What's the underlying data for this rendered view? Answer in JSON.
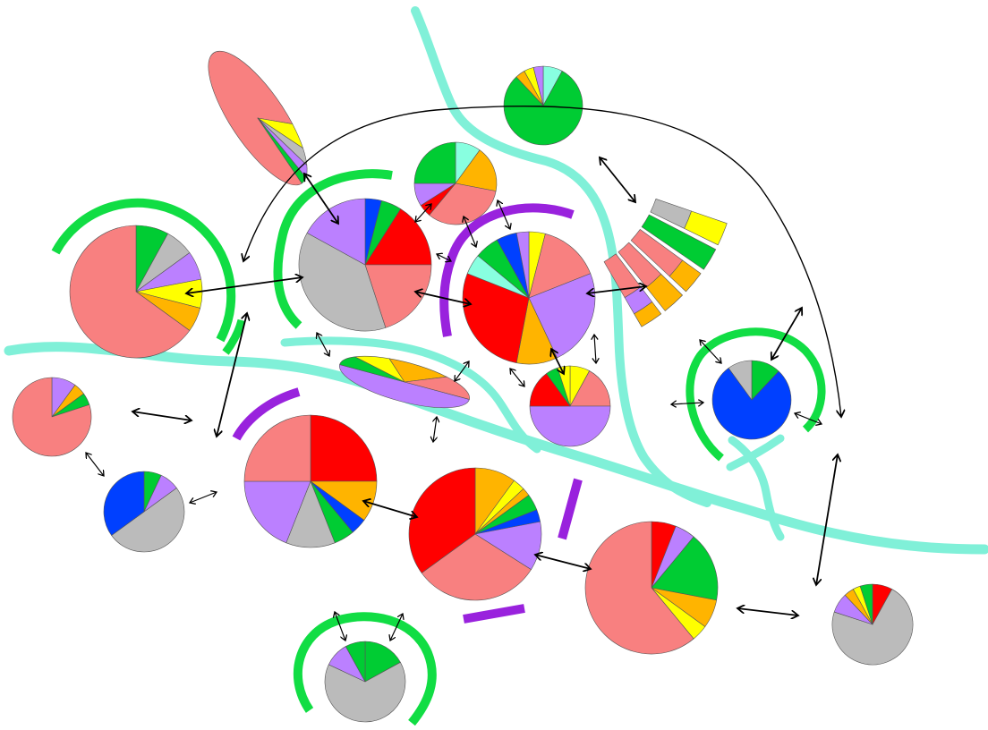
{
  "colors": {
    "salmon": "#f88080",
    "red": "#ff0000",
    "orange": "#ffb400",
    "yellow": "#ffff00",
    "green": "#00cc33",
    "blue": "#0040ff",
    "purple": "#bb80ff",
    "gray": "#bbbbbb",
    "aqua": "#88ffe0",
    "river": "#80f0d8",
    "ring_green": "#11dd44",
    "ring_purple": "#9922dd",
    "arrow": "#000000"
  },
  "pies": [
    {
      "id": "pie-left-large",
      "slices": [
        [
          "green",
          0.08
        ],
        [
          "gray",
          0.07
        ],
        [
          "purple",
          0.07
        ],
        [
          "yellow",
          0.07
        ],
        [
          "orange",
          0.06
        ],
        [
          "salmon",
          0.65
        ]
      ]
    },
    {
      "id": "pie-far-left",
      "slices": [
        [
          "purple",
          0.1
        ],
        [
          "orange",
          0.05
        ],
        [
          "green",
          0.05
        ],
        [
          "salmon",
          0.8
        ]
      ]
    },
    {
      "id": "pie-left-blue",
      "slices": [
        [
          "green",
          0.07
        ],
        [
          "purple",
          0.08
        ],
        [
          "gray",
          0.5
        ],
        [
          "blue",
          0.35
        ]
      ]
    },
    {
      "id": "pie-upper-center",
      "slices": [
        [
          "blue",
          0.04
        ],
        [
          "green",
          0.05
        ],
        [
          "red",
          0.16
        ],
        [
          "salmon",
          0.2
        ],
        [
          "gray",
          0.38
        ],
        [
          "purple",
          0.17
        ]
      ]
    },
    {
      "id": "pie-top-small",
      "slices": [
        [
          "aqua",
          0.1
        ],
        [
          "orange",
          0.18
        ],
        [
          "salmon",
          0.33
        ],
        [
          "red",
          0.05
        ],
        [
          "purple",
          0.09
        ],
        [
          "green",
          0.25
        ]
      ]
    },
    {
      "id": "pie-top-right",
      "slices": [
        [
          "aqua",
          0.08
        ],
        [
          "green",
          0.8
        ],
        [
          "orange",
          0.04
        ],
        [
          "yellow",
          0.04
        ],
        [
          "purple",
          0.04
        ]
      ]
    },
    {
      "id": "pie-center",
      "slices": [
        [
          "yellow",
          0.04
        ],
        [
          "salmon",
          0.15
        ],
        [
          "purple",
          0.24
        ],
        [
          "orange",
          0.1
        ],
        [
          "red",
          0.28
        ],
        [
          "aqua",
          0.05
        ],
        [
          "green",
          0.06
        ],
        [
          "blue",
          0.05
        ],
        [
          "purple",
          0.03
        ]
      ]
    },
    {
      "id": "pie-center-small",
      "slices": [
        [
          "yellow",
          0.08
        ],
        [
          "salmon",
          0.17
        ],
        [
          "purple",
          0.5
        ],
        [
          "red",
          0.15
        ],
        [
          "green",
          0.05
        ],
        [
          "yellow",
          0.05
        ]
      ]
    },
    {
      "id": "pie-blue-ring",
      "slices": [
        [
          "green",
          0.12
        ],
        [
          "blue",
          0.78
        ],
        [
          "gray",
          0.1
        ]
      ]
    },
    {
      "id": "pie-mid-left",
      "slices": [
        [
          "red",
          0.25
        ],
        [
          "orange",
          0.1
        ],
        [
          "blue",
          0.04
        ],
        [
          "green",
          0.05
        ],
        [
          "gray",
          0.12
        ],
        [
          "purple",
          0.19
        ],
        [
          "salmon",
          0.25
        ]
      ]
    },
    {
      "id": "pie-mid-center",
      "slices": [
        [
          "orange",
          0.1
        ],
        [
          "yellow",
          0.03
        ],
        [
          "orange",
          0.02
        ],
        [
          "green",
          0.04
        ],
        [
          "blue",
          0.03
        ],
        [
          "purple",
          0.12
        ],
        [
          "salmon",
          0.31
        ],
        [
          "red",
          0.35
        ]
      ]
    },
    {
      "id": "pie-bottom-right-large",
      "slices": [
        [
          "red",
          0.06
        ],
        [
          "purple",
          0.05
        ],
        [
          "green",
          0.17
        ],
        [
          "orange",
          0.07
        ],
        [
          "yellow",
          0.04
        ],
        [
          "salmon",
          0.61
        ]
      ]
    },
    {
      "id": "pie-far-right",
      "slices": [
        [
          "red",
          0.08
        ],
        [
          "gray",
          0.72
        ],
        [
          "purple",
          0.08
        ],
        [
          "orange",
          0.04
        ],
        [
          "yellow",
          0.03
        ],
        [
          "green",
          0.05
        ]
      ]
    },
    {
      "id": "pie-bottom-small",
      "slices": [
        [
          "green",
          0.17
        ],
        [
          "gray",
          0.65
        ],
        [
          "purple",
          0.1
        ],
        [
          "green",
          0.08
        ]
      ]
    }
  ],
  "ellipses": [
    {
      "id": "ellipse-top-left",
      "slices": [
        [
          "salmon",
          0.8
        ],
        [
          "yellow",
          0.06
        ],
        [
          "gray",
          0.05
        ],
        [
          "purple",
          0.05
        ],
        [
          "green",
          0.04
        ]
      ]
    },
    {
      "id": "ellipse-center-left",
      "slices": [
        [
          "purple",
          0.5
        ],
        [
          "green",
          0.1
        ],
        [
          "yellow",
          0.1
        ],
        [
          "orange",
          0.15
        ],
        [
          "salmon",
          0.15
        ]
      ]
    }
  ],
  "fan": {
    "id": "fan-stack",
    "columns": [
      [
        [
          "salmon",
          0.55
        ],
        [
          "purple",
          0.25
        ],
        [
          "orange",
          0.2
        ]
      ],
      [
        [
          "salmon",
          0.6
        ],
        [
          "orange",
          0.4
        ]
      ],
      [
        [
          "salmon",
          0.7
        ],
        [
          "orange",
          0.3
        ]
      ],
      [
        [
          "green",
          1.0
        ]
      ],
      [
        [
          "gray",
          0.5
        ],
        [
          "yellow",
          0.5
        ]
      ]
    ]
  }
}
